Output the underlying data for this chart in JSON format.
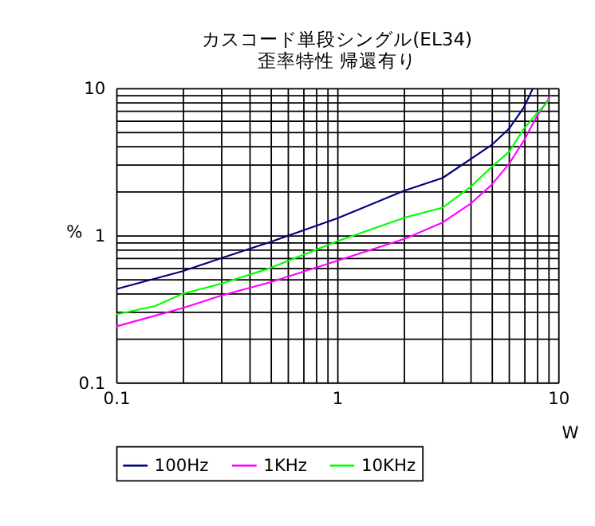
{
  "chart_data": {
    "type": "line",
    "title": [
      "カスコード単段シングル(EL34)",
      "歪率特性 帰還有り"
    ],
    "xlabel": "W",
    "ylabel": "%",
    "log": "xy",
    "grid": true,
    "legend": "bottom",
    "marker": "none",
    "line_style": "solid",
    "xlim": [
      0.1,
      10
    ],
    "ylim": [
      0.1,
      10
    ],
    "xticks": [
      0.1,
      {
        "value": 0.2,
        "label": null
      },
      {
        "value": 0.3,
        "label": null
      },
      {
        "value": 0.4,
        "label": null
      },
      {
        "value": 0.5,
        "label": null
      },
      {
        "value": 0.6,
        "label": null
      },
      {
        "value": 0.7,
        "label": null
      },
      {
        "value": 0.8,
        "label": null
      },
      {
        "value": 0.9,
        "label": null
      },
      1,
      {
        "value": 2,
        "label": null
      },
      {
        "value": 3,
        "label": null
      },
      {
        "value": 4,
        "label": null
      },
      {
        "value": 5,
        "label": null
      },
      {
        "value": 6,
        "label": null
      },
      {
        "value": 7,
        "label": null
      },
      {
        "value": 8,
        "label": null
      },
      {
        "value": 9,
        "label": null
      },
      10
    ],
    "yticks": [
      0.1,
      {
        "value": 0.2,
        "label": null
      },
      {
        "value": 0.3,
        "label": null
      },
      {
        "value": 0.4,
        "label": null
      },
      {
        "value": 0.5,
        "label": null
      },
      {
        "value": 0.6,
        "label": null
      },
      {
        "value": 0.7,
        "label": null
      },
      {
        "value": 0.8,
        "label": null
      },
      {
        "value": 0.9,
        "label": null
      },
      1,
      {
        "value": 2,
        "label": null
      },
      {
        "value": 3,
        "label": null
      },
      {
        "value": 4,
        "label": null
      },
      {
        "value": 5,
        "label": null
      },
      {
        "value": 6,
        "label": null
      },
      {
        "value": 7,
        "label": null
      },
      {
        "value": 8,
        "label": null
      },
      {
        "value": 9,
        "label": null
      },
      10
    ],
    "series": [
      {
        "name": "100Hz",
        "color": "#000080",
        "x": [
          0.1,
          0.2,
          0.3,
          0.5,
          1,
          2,
          3,
          5,
          6,
          7,
          7.7
        ],
        "values": [
          0.43,
          0.57,
          0.7,
          0.9,
          1.3,
          2.0,
          2.45,
          4.1,
          5.3,
          7.4,
          10
        ]
      },
      {
        "name": "1KHz",
        "color": "#ff00ff",
        "x": [
          0.1,
          0.2,
          0.3,
          0.5,
          1,
          2,
          3,
          4,
          5,
          6,
          7,
          8,
          9,
          9.2
        ],
        "values": [
          0.24,
          0.32,
          0.39,
          0.48,
          0.67,
          0.94,
          1.22,
          1.63,
          2.2,
          3.06,
          4.4,
          6.4,
          8.3,
          8.9
        ]
      },
      {
        "name": "10KHz",
        "color": "#00ff00",
        "x": [
          0.1,
          0.15,
          0.2,
          0.3,
          0.5,
          1,
          2,
          3,
          4,
          5,
          6,
          7,
          8,
          9.2
        ],
        "values": [
          0.29,
          0.33,
          0.4,
          0.47,
          0.6,
          0.91,
          1.31,
          1.54,
          2.12,
          2.91,
          3.69,
          5.3,
          6.7,
          8.4
        ]
      }
    ]
  }
}
